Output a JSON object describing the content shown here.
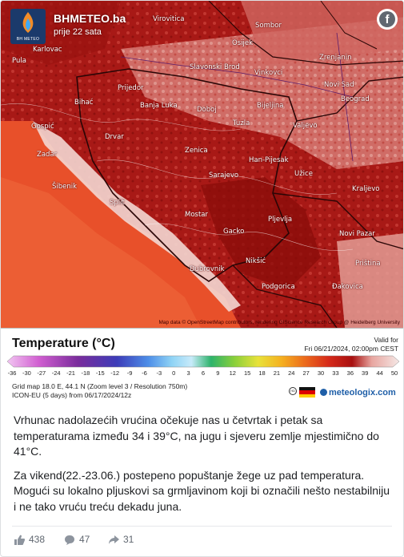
{
  "header": {
    "page_name": "BHMETEO.ba",
    "time": "prije 22 sata",
    "logo_text": "BH METEO",
    "facebook_icon": "f"
  },
  "map": {
    "places": [
      {
        "name": "Virovitica"
      },
      {
        "name": "Osijek"
      },
      {
        "name": "Sombor"
      },
      {
        "name": "Karlovac"
      },
      {
        "name": "Pula"
      },
      {
        "name": "Zrenjanin"
      },
      {
        "name": "Slavonski Brod"
      },
      {
        "name": "Vinkovci"
      },
      {
        "name": "Novi Sad"
      },
      {
        "name": "Prijedor"
      },
      {
        "name": "Bihać"
      },
      {
        "name": "Banja Luka"
      },
      {
        "name": "Bijeljina"
      },
      {
        "name": "Beograd"
      },
      {
        "name": "Gospić"
      },
      {
        "name": "Doboj"
      },
      {
        "name": "Tuzla"
      },
      {
        "name": "Valjevo"
      },
      {
        "name": "Zadar"
      },
      {
        "name": "Drvar"
      },
      {
        "name": "Zenica"
      },
      {
        "name": "Han-Pijesak"
      },
      {
        "name": "Šibenik"
      },
      {
        "name": "Sarajevo"
      },
      {
        "name": "Užice"
      },
      {
        "name": "Kraljevo"
      },
      {
        "name": "Split"
      },
      {
        "name": "Mostar"
      },
      {
        "name": "Pljevlja"
      },
      {
        "name": "Gacko"
      },
      {
        "name": "Novi Pazar"
      },
      {
        "name": "Dubrovnik"
      },
      {
        "name": "Nikšić"
      },
      {
        "name": "Podgorica"
      },
      {
        "name": "Priština"
      },
      {
        "name": "Đakovica"
      }
    ],
    "credit": "Map data © OpenStreetMap contributors, rendering GIScience Research Group @ Heidelberg University"
  },
  "legend": {
    "title": "Temperature (°C)",
    "valid_for_label": "Valid for",
    "valid_for_value": "Fri 06/21/2024, 02:00pm CEST",
    "ticks": [
      "-36",
      "-30",
      "-27",
      "-24",
      "-21",
      "-18",
      "-15",
      "-12",
      "-9",
      "-6",
      "-3",
      "0",
      "3",
      "6",
      "9",
      "12",
      "15",
      "18",
      "21",
      "24",
      "27",
      "30",
      "33",
      "36",
      "39",
      "44",
      "50"
    ],
    "grid_line": "Grid map 18.0 E, 44.1 N (Zoom level 3 / Resolution 750m)",
    "model_line": "ICON-EU (5 days) from 06/17/2024/12z",
    "brand": "meteologix.com"
  },
  "post": {
    "paragraph1": "Vrhunac nadolazećih vrućina očekuje nas u četvrtak i petak sa temperaturama između 34 i 39°C, na jugu i sjeveru zemlje mjestimično do 41°C.",
    "paragraph2": "Za vikend(22.-23.06.) postepeno popuštanje žege uz pad temperatura. Mogući su lokalno pljuskovi sa grmljavinom koji bi označili nešto nestabilniju i ne tako vruću treću dekadu juna."
  },
  "reactions": {
    "likes": "438",
    "comments": "47",
    "shares": "31"
  },
  "colors": {
    "accent": "#1f5fa8",
    "map_hot": "#b01e1a",
    "sea": "#e8502a"
  }
}
